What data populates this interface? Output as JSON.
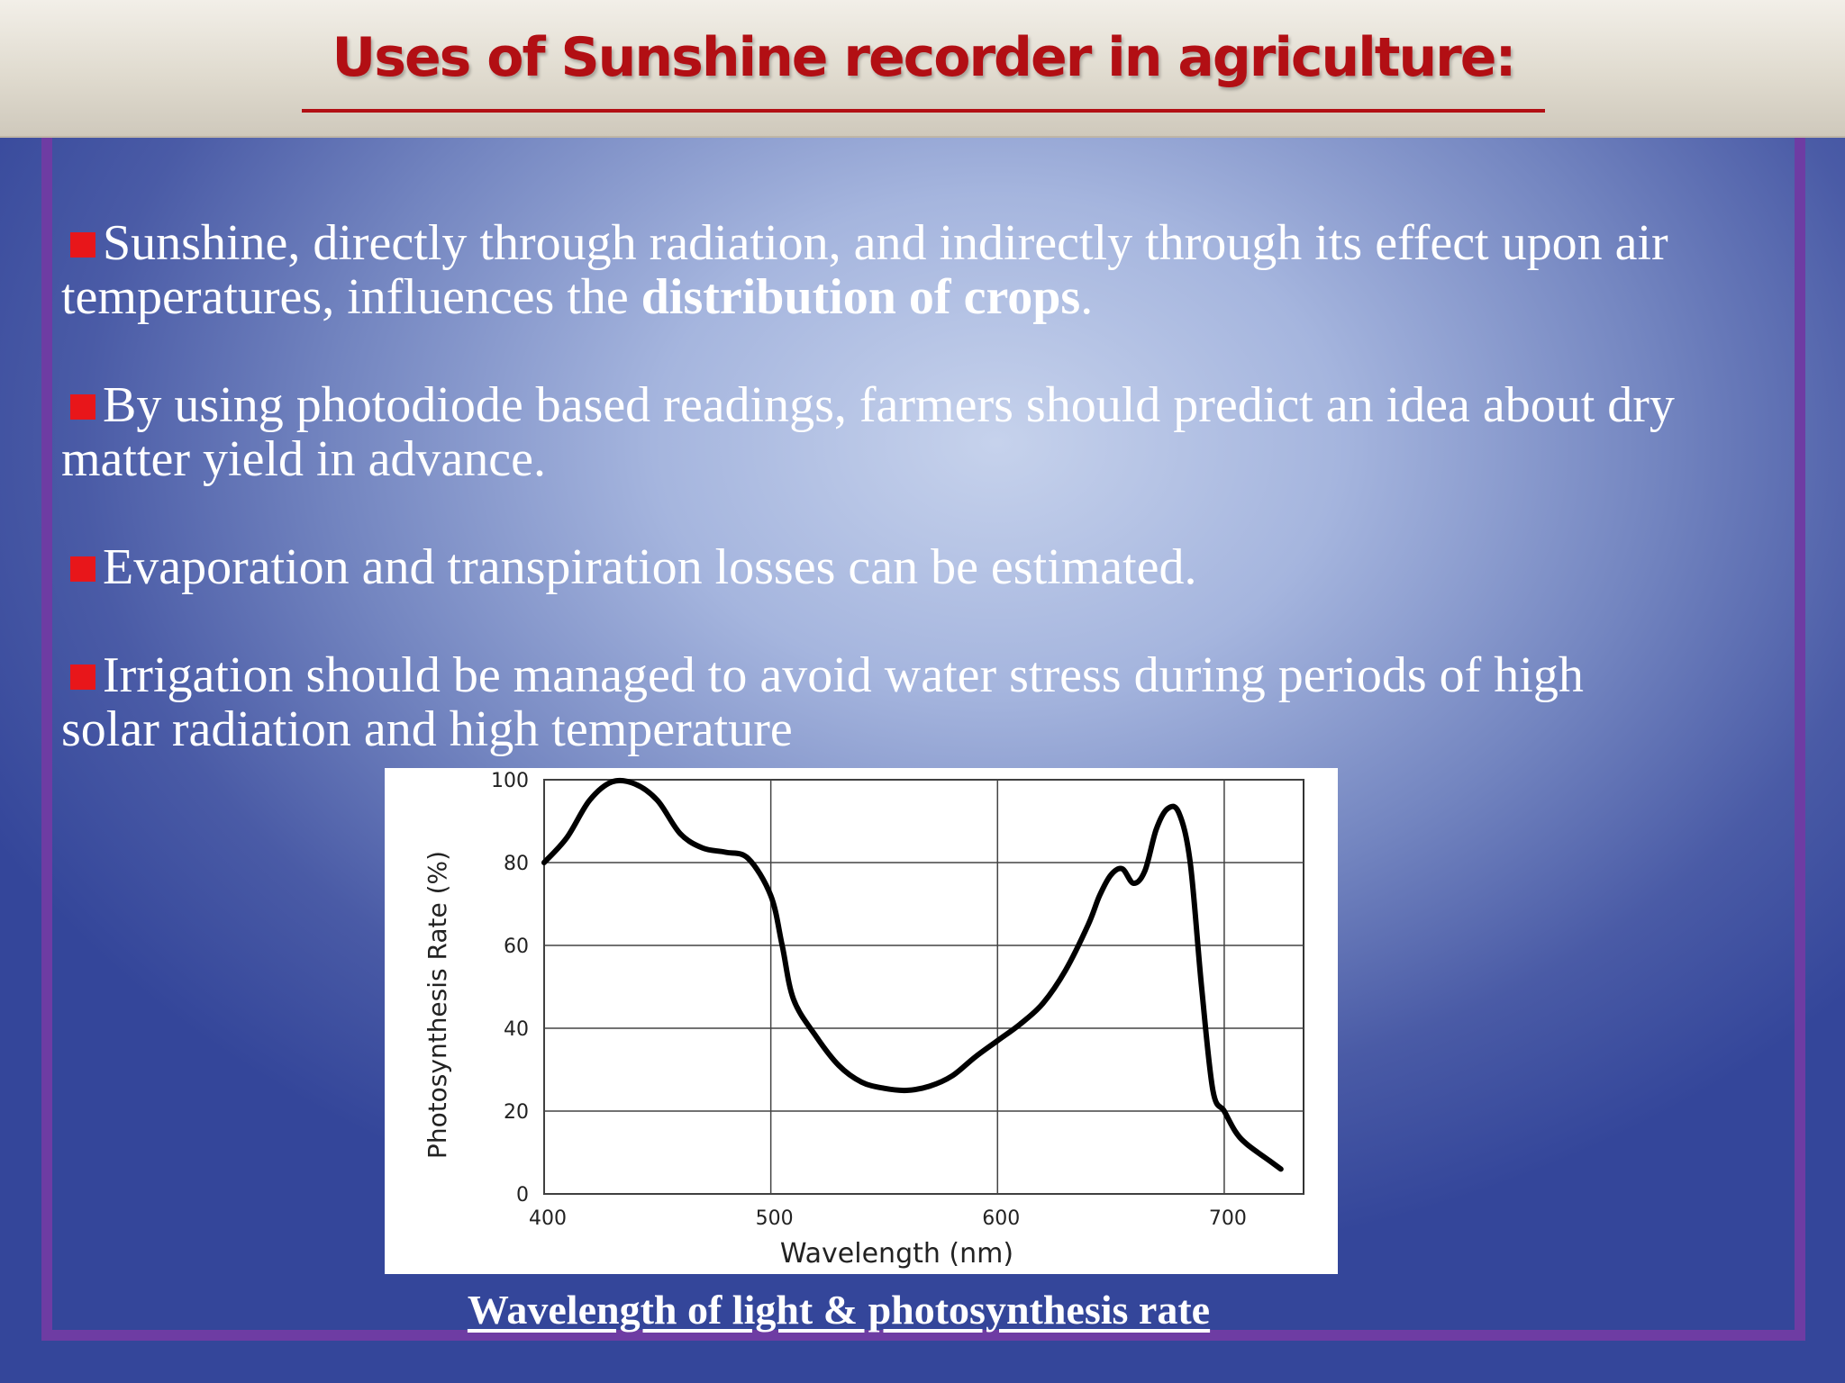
{
  "slide": {
    "title": "Uses of Sunshine recorder in agriculture:",
    "bullets": [
      {
        "text_before": "Sunshine, directly through radiation, and indirectly through its effect upon air temperatures, influences the ",
        "bold": "distribution of crops",
        "text_after": "."
      },
      {
        "text_before": "By using photodiode based readings, farmers should predict an idea about dry matter yield in advance.",
        "bold": "",
        "text_after": ""
      },
      {
        "text_before": "Evaporation and transpiration losses can be estimated.",
        "bold": "",
        "text_after": ""
      },
      {
        "text_before": "Irrigation should be managed to avoid water stress during periods of high solar radiation and high temperature",
        "bold": "",
        "text_after": ""
      }
    ],
    "caption": "Wavelength of light & photosynthesis rate"
  },
  "colors": {
    "title": "#b20f14",
    "bullet_marker": "#e8161a",
    "frame": "#6e3ca3",
    "body_text": "#ffffff"
  },
  "chart_data": {
    "type": "line",
    "title": "",
    "xlabel": "Wavelength (nm)",
    "ylabel": "Photosynthesis Rate (%)",
    "xlim": [
      400,
      735
    ],
    "ylim": [
      0,
      100
    ],
    "x_ticks": [
      400,
      500,
      600,
      700
    ],
    "y_ticks": [
      0,
      20,
      40,
      60,
      80,
      100
    ],
    "grid": true,
    "series": [
      {
        "name": "",
        "x": [
          400,
          410,
          420,
          430,
          440,
          450,
          460,
          470,
          480,
          490,
          500,
          505,
          510,
          520,
          530,
          540,
          550,
          560,
          570,
          580,
          590,
          600,
          610,
          620,
          630,
          640,
          645,
          650,
          655,
          660,
          665,
          670,
          675,
          680,
          685,
          690,
          695,
          700,
          705,
          710,
          720,
          725
        ],
        "y": [
          80,
          86,
          95,
          99.5,
          99,
          95,
          87,
          83.5,
          82.5,
          81,
          72,
          60,
          47,
          38,
          31,
          27,
          25.5,
          25,
          26,
          28.5,
          33,
          37,
          41,
          46,
          54,
          65,
          72,
          77,
          78.5,
          75,
          78,
          88,
          93,
          92,
          80,
          50,
          25,
          20,
          15,
          12,
          8,
          6
        ]
      }
    ]
  }
}
